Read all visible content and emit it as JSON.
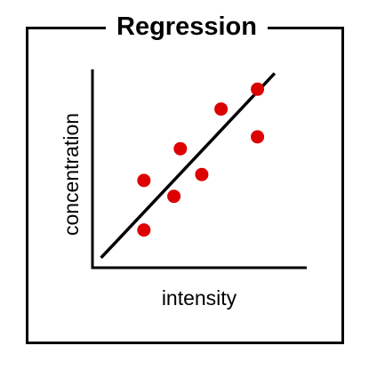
{
  "chart_data": {
    "type": "scatter",
    "title": "Regression",
    "xlabel": "intensity",
    "ylabel": "concentration",
    "xlim": [
      0,
      10
    ],
    "ylim": [
      0,
      10
    ],
    "grid": false,
    "axis_ticks": false,
    "point_color": "#dd0000",
    "line_color": "#000000",
    "points": [
      {
        "x": 2.4,
        "y": 1.9
      },
      {
        "x": 2.4,
        "y": 4.4
      },
      {
        "x": 3.8,
        "y": 3.6
      },
      {
        "x": 4.1,
        "y": 6.0
      },
      {
        "x": 5.1,
        "y": 4.7
      },
      {
        "x": 6.0,
        "y": 8.0
      },
      {
        "x": 7.7,
        "y": 6.6
      },
      {
        "x": 7.7,
        "y": 9.0
      }
    ],
    "trendline": {
      "x1": 0.4,
      "y1": 0.5,
      "x2": 8.5,
      "y2": 9.8
    }
  }
}
